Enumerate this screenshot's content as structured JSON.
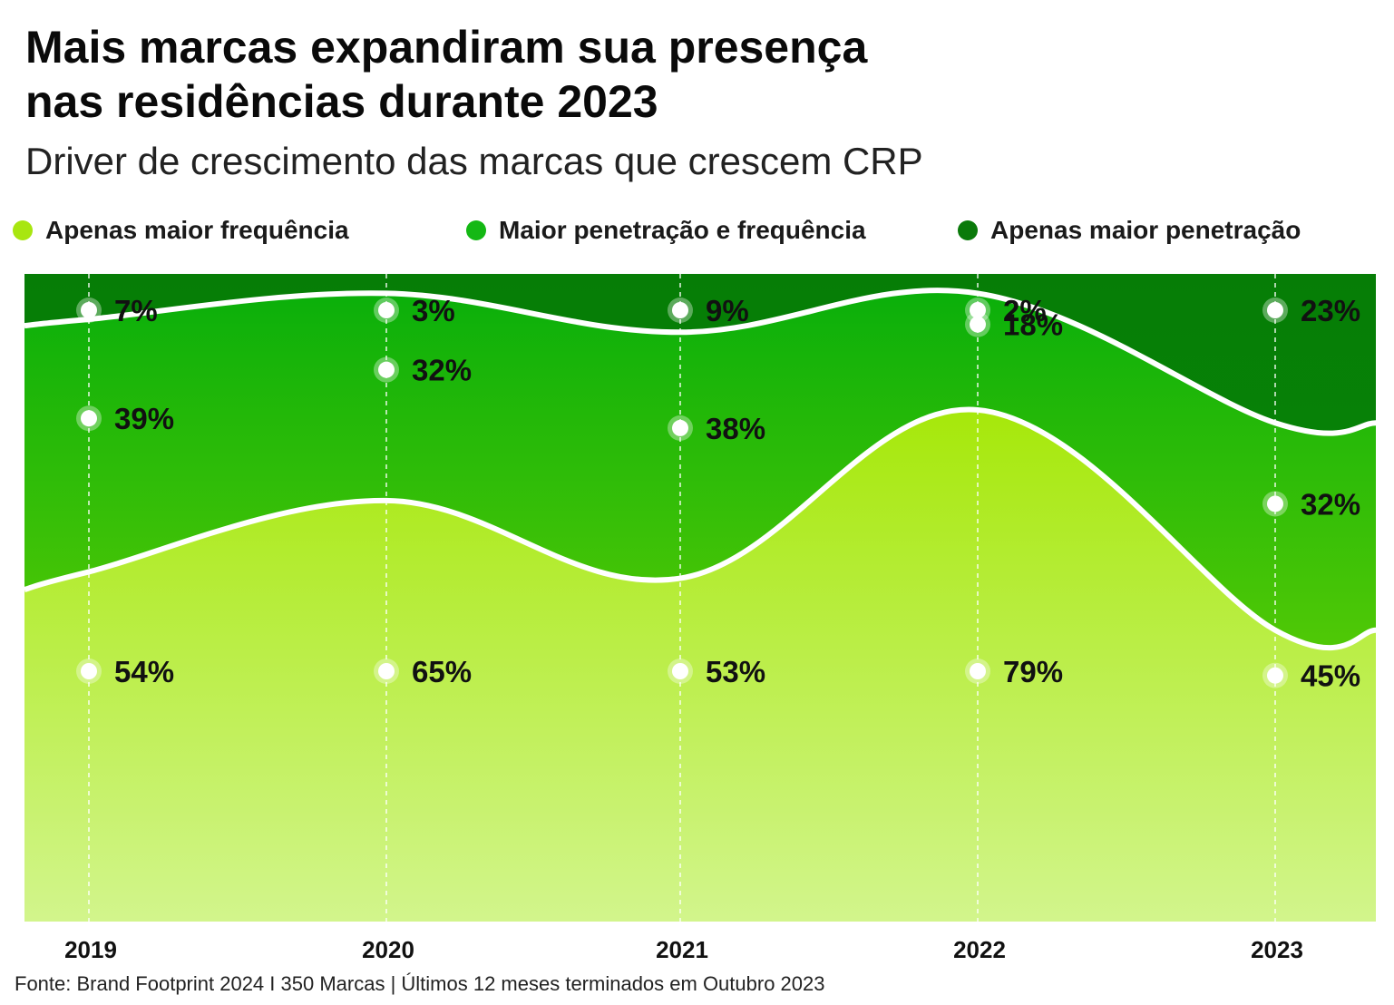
{
  "title_line1": "Mais marcas expandiram sua presença",
  "title_line2": "nas residências durante 2023",
  "subtitle": "Driver de crescimento das marcas que crescem CRP",
  "legend": [
    {
      "label": "Apenas maior frequência",
      "color": "#a8e610"
    },
    {
      "label": "Maior penetração e frequência",
      "color": "#14b814"
    },
    {
      "label": "Apenas maior penetração",
      "color": "#0a7a0a"
    }
  ],
  "footnote": "Fonte: Brand Footprint 2024 I 350 Marcas | Últimos 12 meses terminados em Outubro 2023",
  "chart_data": {
    "type": "area",
    "stacked": true,
    "categories": [
      "2019",
      "2020",
      "2021",
      "2022",
      "2023"
    ],
    "series": [
      {
        "name": "Apenas maior frequência",
        "values": [
          54,
          65,
          53,
          79,
          45
        ],
        "labels": [
          "54%",
          "65%",
          "53%",
          "79%",
          "45%"
        ],
        "color": "#a8e610"
      },
      {
        "name": "Maior penetração e frequência",
        "values": [
          39,
          32,
          38,
          18,
          32
        ],
        "labels": [
          "39%",
          "32%",
          "38%",
          "18%",
          "32%"
        ],
        "color": "#14b814"
      },
      {
        "name": "Apenas maior penetração",
        "values": [
          7,
          3,
          9,
          2,
          23
        ],
        "labels": [
          "7%",
          "3%",
          "9%",
          "2%",
          "23%"
        ],
        "color": "#0a7a0a"
      }
    ],
    "grid": "dashed vertical lines at each year",
    "legend_position": "top"
  }
}
